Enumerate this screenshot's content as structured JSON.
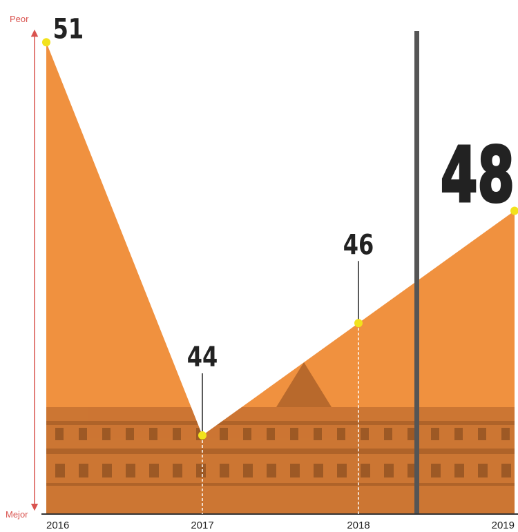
{
  "chart_data": {
    "type": "area",
    "categories": [
      "2016",
      "2017",
      "2018",
      "2019"
    ],
    "values": [
      51,
      44,
      46,
      48
    ],
    "color": "#f0913f",
    "point_color": "#f2e21c",
    "ylim": [
      42.6,
      51.2
    ],
    "y_top_label": "Peor",
    "y_bottom_label": "Mejor"
  }
}
